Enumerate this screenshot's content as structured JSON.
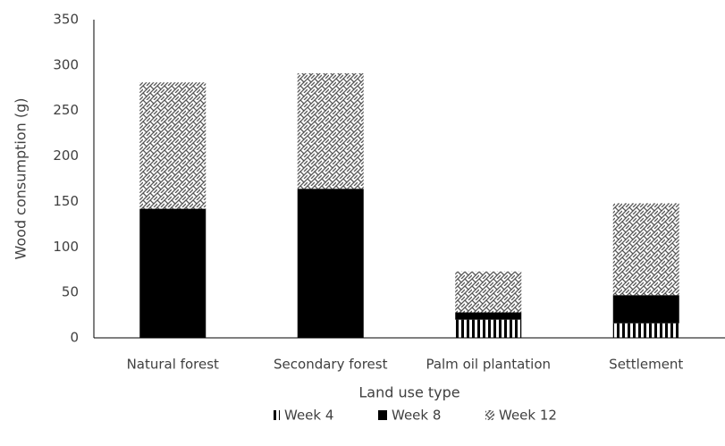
{
  "chart_data": {
    "type": "stacked_bar",
    "categories": [
      "Natural forest",
      "Secondary forest",
      "Palm oil plantation",
      "Settlement"
    ],
    "series": [
      {
        "name": "Week 4",
        "color": "#000000",
        "pattern": "vertical-stripes",
        "values": [
          0,
          0,
          20,
          16
        ]
      },
      {
        "name": "Week 8",
        "color": "#000000",
        "pattern": "solid",
        "values": [
          142,
          164,
          8,
          31
        ]
      },
      {
        "name": "Week 12",
        "color": "#000000",
        "pattern": "weave",
        "values": [
          139,
          127,
          45,
          101
        ]
      }
    ],
    "xlabel": "Land use type",
    "ylabel": "Wood consumption (g)",
    "ylim": [
      0,
      350
    ],
    "yticks": [
      0,
      50,
      100,
      150,
      200,
      250,
      300,
      350
    ],
    "grid": false,
    "legend": "bottom"
  }
}
